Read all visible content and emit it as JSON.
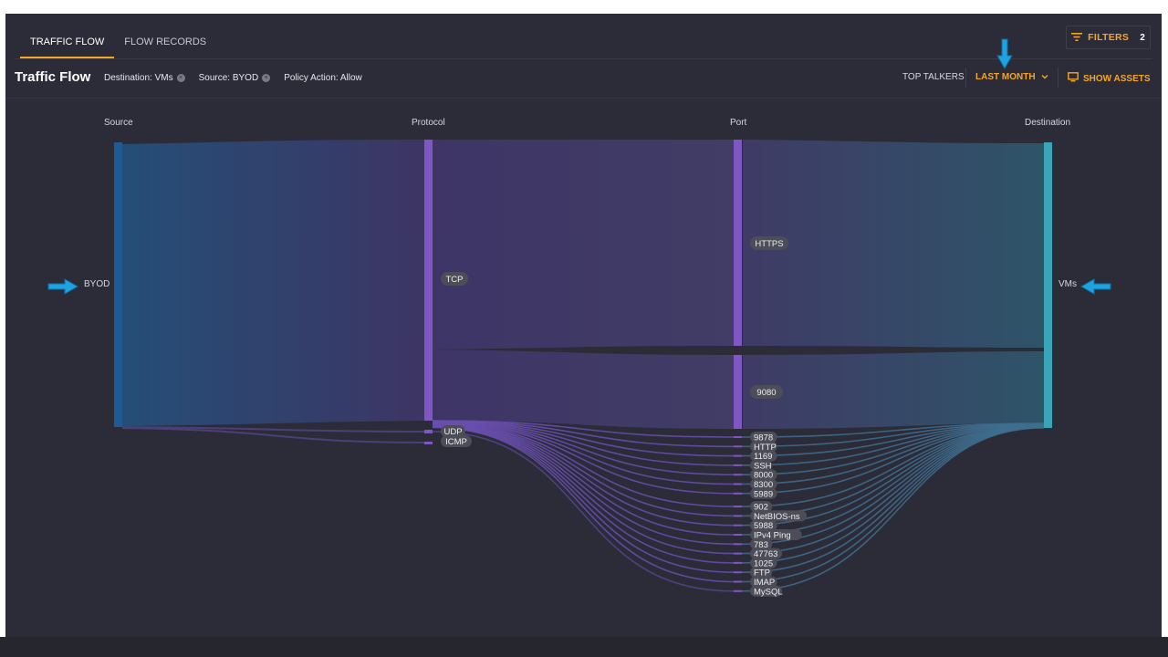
{
  "tabs": [
    {
      "label": "TRAFFIC FLOW",
      "active": true
    },
    {
      "label": "FLOW RECORDS",
      "active": false
    }
  ],
  "filters": {
    "label": "FILTERS",
    "count": "2",
    "icon": "filter-lines-icon"
  },
  "header": {
    "title": "Traffic Flow",
    "chips": [
      {
        "label": "Destination: VMs",
        "removable": true
      },
      {
        "label": "Source: BYOD",
        "removable": true
      },
      {
        "label": "Policy Action: Allow",
        "removable": false
      }
    ],
    "top_talkers": "TOP TALKERS",
    "time_range": "LAST MONTH",
    "show_assets": "SHOW ASSETS"
  },
  "columns": {
    "source": "Source",
    "protocol": "Protocol",
    "port": "Port",
    "destination": "Destination"
  },
  "nodes": {
    "source": [
      {
        "label": "BYOD",
        "color": "#1e5a96"
      }
    ],
    "protocol": [
      {
        "label": "TCP",
        "color": "#7e57c2"
      },
      {
        "label": "UDP",
        "color": "#7e57c2"
      },
      {
        "label": "ICMP",
        "color": "#7e57c2"
      }
    ],
    "port": [
      {
        "label": "HTTPS"
      },
      {
        "label": "9080"
      },
      {
        "label": "9878"
      },
      {
        "label": "HTTP"
      },
      {
        "label": "1169"
      },
      {
        "label": "SSH"
      },
      {
        "label": "8000"
      },
      {
        "label": "8300"
      },
      {
        "label": "5989"
      },
      {
        "label": "902"
      },
      {
        "label": "NetBIOS-ns"
      },
      {
        "label": "5988"
      },
      {
        "label": "IPv4 Ping"
      },
      {
        "label": "783"
      },
      {
        "label": "47763"
      },
      {
        "label": "1025"
      },
      {
        "label": "FTP"
      },
      {
        "label": "IMAP"
      },
      {
        "label": "MySQL"
      }
    ],
    "destination": [
      {
        "label": "VMs",
        "color": "#3aa4b8"
      }
    ]
  },
  "colors": {
    "accent": "#f5a623",
    "background": "#2c2c38",
    "callout_arrow": "#1fa3e0"
  }
}
